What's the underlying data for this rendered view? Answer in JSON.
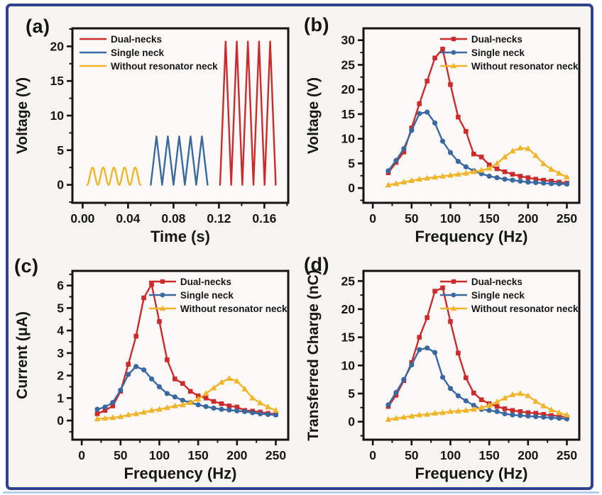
{
  "figure": {
    "border_color": "#31418e",
    "bottom_line_color": "#b5cfe8",
    "background": "#f7f5f2",
    "plot_background": "#fbfaf8",
    "axis_color": "#141414"
  },
  "colors": {
    "red": "#cd2a2b",
    "blue": "#3a68a0",
    "yellow": "#f2b42a"
  },
  "legend_labels": [
    "Dual-necks",
    "Single neck",
    "Without resonator neck"
  ],
  "chart_data": [
    {
      "id": "a",
      "panel_label": "(a)",
      "type": "line",
      "xlabel": "Time (s)",
      "ylabel": "Voltage (V)",
      "xlim": [
        -0.009,
        0.181
      ],
      "ylim": [
        -2.6,
        22.6
      ],
      "xticks": [
        0,
        0.04,
        0.08,
        0.12,
        0.16
      ],
      "xtick_labels": [
        "0.00",
        "0.04",
        "0.08",
        "0.12",
        "0.16"
      ],
      "x_minor_step": 0.02,
      "yticks": [
        0,
        5,
        10,
        15,
        20
      ],
      "y_minor_step": 2.5,
      "legend_pos": "top-left",
      "legend_markers": false,
      "grid": false,
      "series": [
        {
          "name": "Dual-necks",
          "color_key": "red",
          "waveform": {
            "shape": "triangle",
            "t_start": 0.121,
            "t_end": 0.17,
            "cycles": 5,
            "amplitude": 20.7,
            "baseline": 0
          }
        },
        {
          "name": "Single neck",
          "color_key": "blue",
          "waveform": {
            "shape": "triangle",
            "t_start": 0.06,
            "t_end": 0.11,
            "cycles": 5,
            "amplitude": 7.0,
            "baseline": 0
          }
        },
        {
          "name": "Without resonator neck",
          "color_key": "yellow",
          "waveform": {
            "shape": "sine",
            "t_start": 0.004,
            "t_end": 0.051,
            "cycles": 5,
            "amplitude": 2.5,
            "baseline": 0
          }
        }
      ]
    },
    {
      "id": "b",
      "panel_label": "(b)",
      "type": "line",
      "xlabel": "Frequency (Hz)",
      "ylabel": "Voltage (V)",
      "xlim": [
        -12,
        266
      ],
      "ylim": [
        -3.0,
        32.4
      ],
      "xticks": [
        0,
        50,
        100,
        150,
        200,
        250
      ],
      "x_minor_step": 25,
      "yticks": [
        0,
        5,
        10,
        15,
        20,
        25,
        30
      ],
      "y_minor_step": 2.5,
      "legend_pos": "top-right",
      "legend_markers": true,
      "grid": false,
      "x": [
        20,
        30,
        40,
        50,
        60,
        70,
        80,
        90,
        100,
        110,
        120,
        130,
        140,
        150,
        160,
        170,
        180,
        190,
        200,
        210,
        220,
        230,
        240,
        250
      ],
      "series": [
        {
          "name": "Dual-necks",
          "color_key": "red",
          "marker": "square",
          "values": [
            3.1,
            5.2,
            7.3,
            12.2,
            17.1,
            21.7,
            26.4,
            28.2,
            21.0,
            14.4,
            11.5,
            6.9,
            6.3,
            4.7,
            3.9,
            3.3,
            2.8,
            2.4,
            2.1,
            1.8,
            1.6,
            1.4,
            1.2,
            1.0
          ]
        },
        {
          "name": "Single neck",
          "color_key": "blue",
          "marker": "circle",
          "values": [
            3.5,
            5.6,
            8.0,
            11.7,
            15.1,
            15.4,
            13.2,
            9.5,
            7.2,
            5.4,
            4.3,
            3.5,
            2.9,
            2.4,
            2.1,
            1.8,
            1.6,
            1.4,
            1.2,
            1.1,
            1.0,
            0.9,
            0.85,
            0.8
          ]
        },
        {
          "name": "Without resonator neck",
          "color_key": "yellow",
          "marker": "triangle",
          "values": [
            0.6,
            0.9,
            1.2,
            1.5,
            1.8,
            2.0,
            2.2,
            2.4,
            2.6,
            2.8,
            3.0,
            3.3,
            3.6,
            4.0,
            5.0,
            6.3,
            7.5,
            8.1,
            8.0,
            6.6,
            4.9,
            3.8,
            3.0,
            2.2
          ]
        }
      ]
    },
    {
      "id": "c",
      "panel_label": "(c)",
      "type": "line",
      "xlabel": "Frequency (Hz)",
      "ylabel": "Current (μA)",
      "xlim": [
        -12,
        266
      ],
      "ylim": [
        -0.85,
        6.65
      ],
      "xticks": [
        0,
        50,
        100,
        150,
        200,
        250
      ],
      "x_minor_step": 25,
      "yticks": [
        0,
        1,
        2,
        3,
        4,
        5,
        6
      ],
      "y_minor_step": 0.5,
      "legend_pos": "top-right",
      "legend_markers": true,
      "grid": false,
      "x": [
        20,
        30,
        40,
        50,
        60,
        70,
        80,
        90,
        100,
        110,
        120,
        130,
        140,
        150,
        160,
        170,
        180,
        190,
        200,
        210,
        220,
        230,
        240,
        250
      ],
      "series": [
        {
          "name": "Dual-necks",
          "color_key": "red",
          "marker": "square",
          "values": [
            0.3,
            0.45,
            0.65,
            1.3,
            2.5,
            3.75,
            5.45,
            6.05,
            4.4,
            2.7,
            1.85,
            1.65,
            1.3,
            1.1,
            1.0,
            0.85,
            0.75,
            0.65,
            0.6,
            0.45,
            0.42,
            0.38,
            0.32,
            0.28
          ]
        },
        {
          "name": "Single neck",
          "color_key": "blue",
          "marker": "circle",
          "values": [
            0.5,
            0.6,
            0.8,
            1.35,
            2.05,
            2.4,
            2.25,
            1.85,
            1.5,
            1.2,
            1.05,
            0.9,
            0.8,
            0.7,
            0.62,
            0.55,
            0.5,
            0.47,
            0.43,
            0.4,
            0.35,
            0.3,
            0.27,
            0.25
          ]
        },
        {
          "name": "Without resonator neck",
          "color_key": "yellow",
          "marker": "triangle",
          "values": [
            0.07,
            0.1,
            0.13,
            0.17,
            0.25,
            0.3,
            0.37,
            0.45,
            0.5,
            0.57,
            0.65,
            0.7,
            0.8,
            0.95,
            1.2,
            1.45,
            1.7,
            1.87,
            1.75,
            1.4,
            1.0,
            0.78,
            0.6,
            0.45
          ]
        }
      ]
    },
    {
      "id": "d",
      "panel_label": "(d)",
      "type": "line",
      "xlabel": "Frequency (Hz)",
      "ylabel": "Transferred Charge (nC)",
      "xlim": [
        -12,
        266
      ],
      "ylim": [
        -3.2,
        26.8
      ],
      "xticks": [
        0,
        50,
        100,
        150,
        200,
        250
      ],
      "x_minor_step": 25,
      "yticks": [
        0,
        5,
        10,
        15,
        20,
        25
      ],
      "y_minor_step": 2.5,
      "legend_pos": "top-right",
      "legend_markers": true,
      "grid": false,
      "x": [
        20,
        30,
        40,
        50,
        60,
        70,
        80,
        90,
        100,
        110,
        120,
        130,
        140,
        150,
        160,
        170,
        180,
        190,
        200,
        210,
        220,
        230,
        240,
        250
      ],
      "series": [
        {
          "name": "Dual-necks",
          "color_key": "red",
          "marker": "square",
          "values": [
            2.7,
            4.7,
            7.3,
            10.5,
            15.0,
            18.5,
            23.2,
            23.8,
            17.8,
            12.2,
            7.8,
            5.1,
            3.9,
            3.2,
            2.7,
            2.3,
            2.0,
            1.8,
            1.6,
            1.5,
            1.3,
            1.1,
            1.0,
            0.8
          ]
        },
        {
          "name": "Single neck",
          "color_key": "blue",
          "marker": "circle",
          "values": [
            3.0,
            5.2,
            7.5,
            10.1,
            12.8,
            13.1,
            12.3,
            7.9,
            5.9,
            4.6,
            3.7,
            2.9,
            2.2,
            2.0,
            1.8,
            1.4,
            1.2,
            1.1,
            1.0,
            0.9,
            0.8,
            0.7,
            0.6,
            0.5
          ]
        },
        {
          "name": "Without resonator neck",
          "color_key": "yellow",
          "marker": "triangle",
          "values": [
            0.4,
            0.6,
            0.8,
            1.0,
            1.2,
            1.3,
            1.5,
            1.6,
            1.8,
            1.9,
            2.0,
            2.2,
            2.5,
            2.9,
            3.5,
            4.2,
            4.8,
            5.0,
            4.6,
            3.6,
            2.8,
            2.1,
            1.6,
            1.2
          ]
        }
      ]
    }
  ]
}
